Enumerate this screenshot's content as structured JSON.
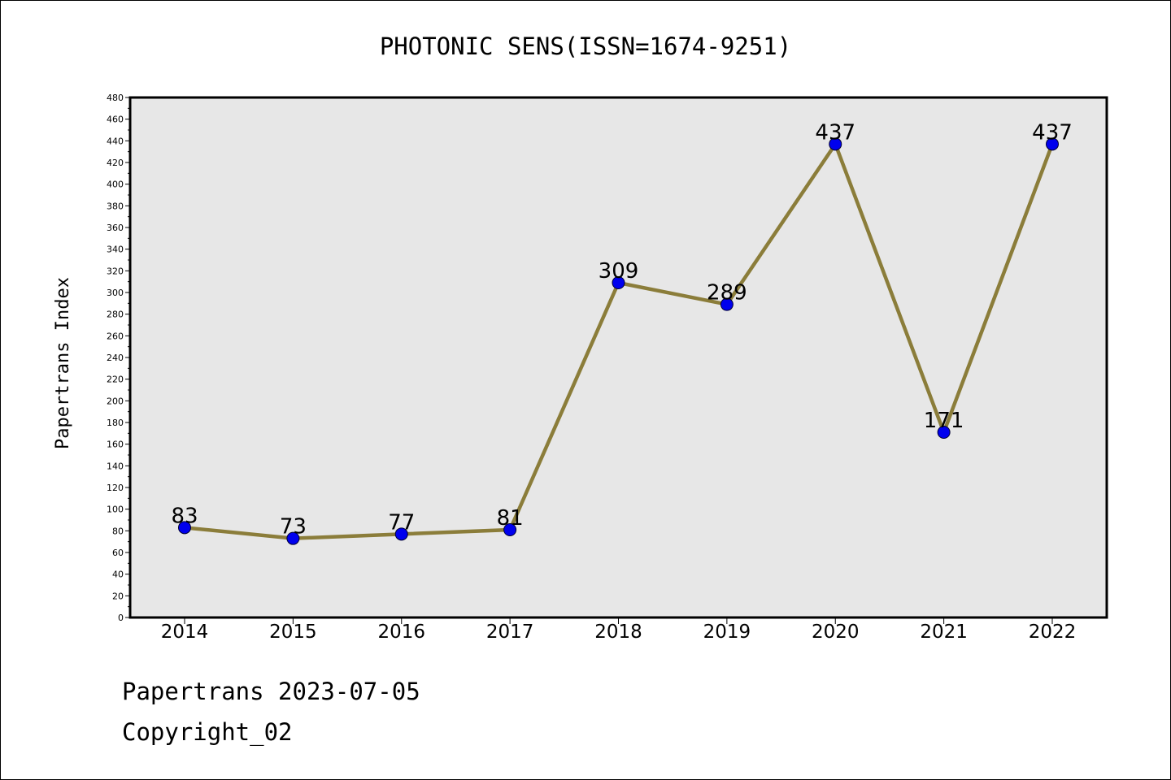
{
  "chart_data": {
    "type": "line",
    "title": "PHOTONIC SENS(ISSN=1674-9251)",
    "ylabel": "Papertrans Index",
    "xlabel": "",
    "categories": [
      "2014",
      "2015",
      "2016",
      "2017",
      "2018",
      "2019",
      "2020",
      "2021",
      "2022"
    ],
    "series": [
      {
        "values": [
          83,
          73,
          77,
          81,
          309,
          289,
          437,
          171,
          437
        ]
      }
    ],
    "data_labels": [
      "83",
      "73",
      "77",
      "81",
      "309",
      "289",
      "437",
      "171",
      "437"
    ],
    "ylim": [
      0,
      480
    ],
    "yticks": [
      "0",
      "20",
      "40",
      "60",
      "80",
      "100",
      "120",
      "140",
      "160",
      "180",
      "200",
      "220",
      "240",
      "260",
      "280",
      "300",
      "320",
      "340",
      "360",
      "380",
      "400",
      "420",
      "440",
      "460",
      "480"
    ],
    "grid": false,
    "legend": "none",
    "colors": {
      "line": "#8B7D3A",
      "marker": "#0000EE",
      "plot_background": "#E7E7E7"
    }
  },
  "footer": {
    "line1": "Papertrans 2023-07-05",
    "line2": "Copyright_02"
  }
}
